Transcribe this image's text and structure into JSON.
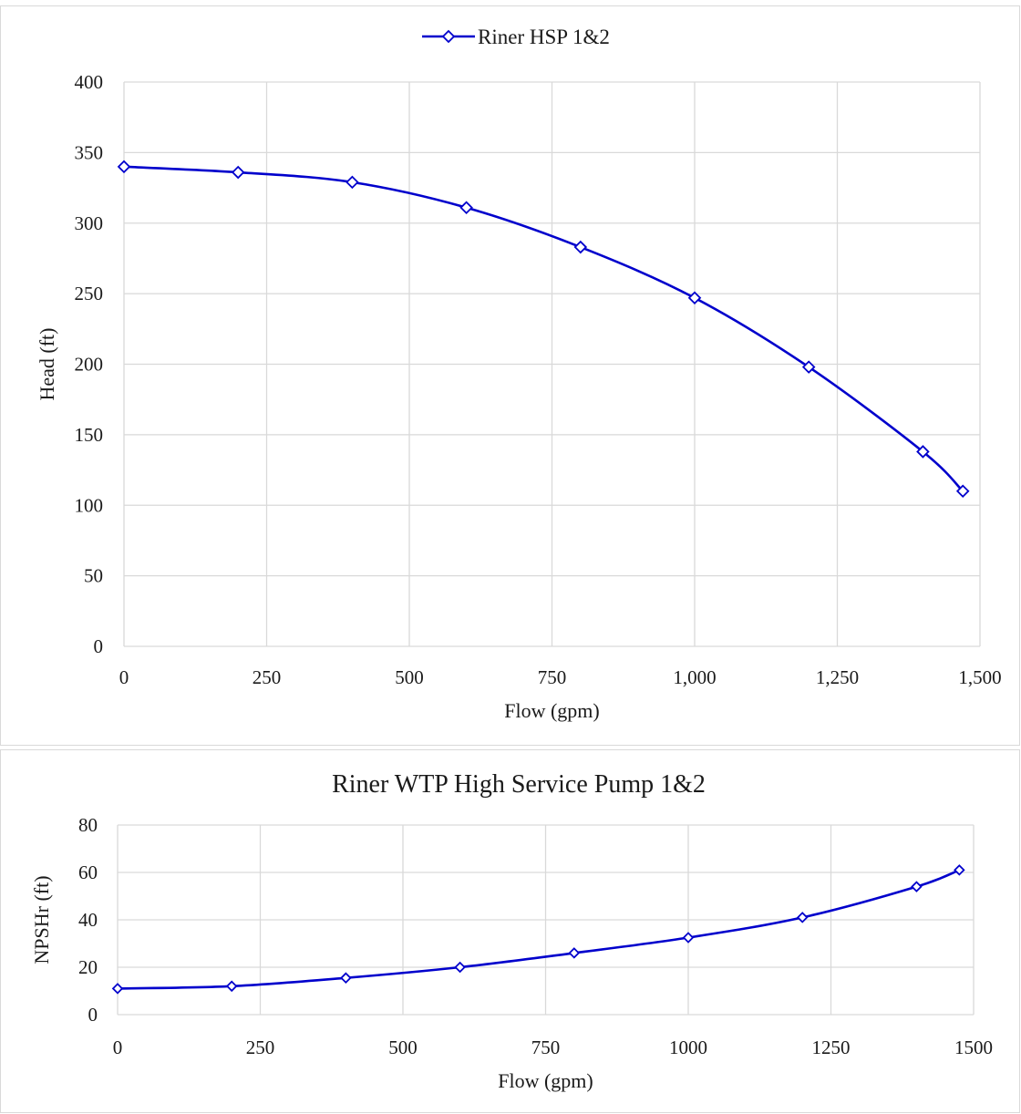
{
  "chart_data": [
    {
      "type": "line",
      "title": "",
      "xlabel": "Flow (gpm)",
      "ylabel": "Head (ft)",
      "xlim": [
        0,
        1500
      ],
      "ylim": [
        0,
        400
      ],
      "xticks": [
        0,
        250,
        500,
        750,
        1000,
        1250,
        1500
      ],
      "xtick_labels": [
        "0",
        "250",
        "500",
        "750",
        "1,000",
        "1,250",
        "1,500"
      ],
      "yticks": [
        0,
        50,
        100,
        150,
        200,
        250,
        300,
        350,
        400
      ],
      "ytick_labels": [
        "0",
        "50",
        "100",
        "150",
        "200",
        "250",
        "300",
        "350",
        "400"
      ],
      "grid": true,
      "legend": "top-center",
      "series": [
        {
          "name": "Riner HSP 1&2",
          "color": "#0000cc",
          "marker": "diamond",
          "x": [
            0,
            200,
            400,
            600,
            800,
            1000,
            1200,
            1400,
            1470
          ],
          "y": [
            340,
            336,
            329,
            311,
            283,
            247,
            198,
            138,
            110
          ]
        }
      ]
    },
    {
      "type": "line",
      "title": "Riner WTP High Service Pump 1&2",
      "xlabel": "Flow (gpm)",
      "ylabel": "NPSHr (ft)",
      "xlim": [
        0,
        1500
      ],
      "ylim": [
        0,
        80
      ],
      "xticks": [
        0,
        250,
        500,
        750,
        1000,
        1250,
        1500
      ],
      "xtick_labels": [
        "0",
        "250",
        "500",
        "750",
        "1000",
        "1250",
        "1500"
      ],
      "yticks": [
        0,
        20,
        40,
        60,
        80
      ],
      "ytick_labels": [
        "0",
        "20",
        "40",
        "60",
        "80"
      ],
      "grid": true,
      "legend": "none",
      "series": [
        {
          "color": "#0000cc",
          "marker": "diamond",
          "x": [
            0,
            200,
            400,
            600,
            800,
            1000,
            1200,
            1400,
            1475
          ],
          "y": [
            11,
            12,
            15.5,
            20,
            26,
            32.5,
            41,
            54,
            61
          ]
        }
      ]
    }
  ]
}
